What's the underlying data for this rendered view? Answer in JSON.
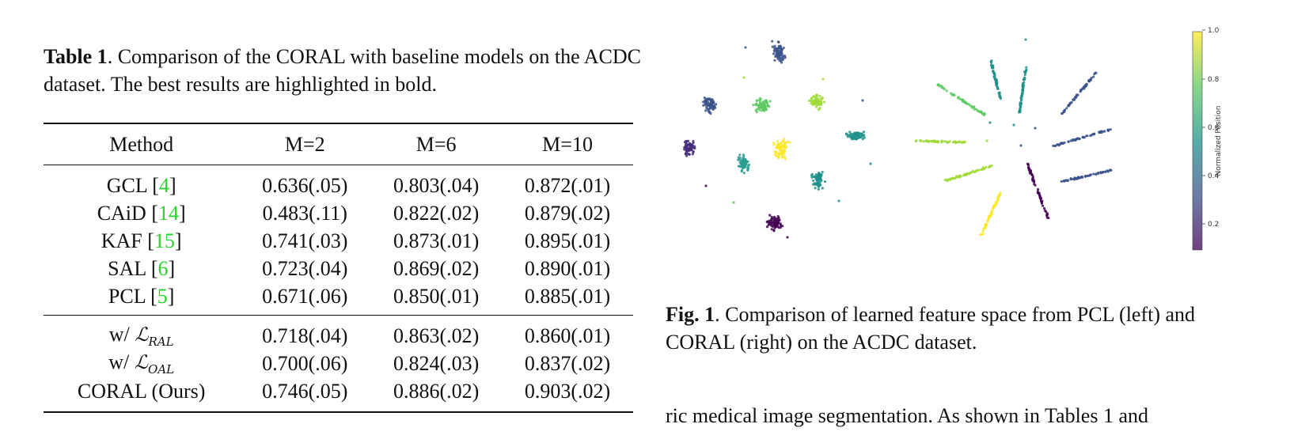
{
  "table": {
    "caption_label": "Table 1",
    "caption_text": ". Comparison of the CORAL with baseline models on the ACDC dataset. The best results are highlighted in bold.",
    "headers": [
      "Method",
      "M=2",
      "M=6",
      "M=10"
    ],
    "baselines": [
      {
        "method": "GCL",
        "ref": "4",
        "m2": "0.636(.05)",
        "m6": "0.803(.04)",
        "m10": "0.872(.01)"
      },
      {
        "method": "CAiD",
        "ref": "14",
        "m2": "0.483(.11)",
        "m6": "0.822(.02)",
        "m10": "0.879(.02)"
      },
      {
        "method": "KAF",
        "ref": "15",
        "m2": "0.741(.03)",
        "m6": "0.873(.01)",
        "m10": "0.895(.01)"
      },
      {
        "method": "SAL",
        "ref": "6",
        "m2": "0.723(.04)",
        "m6": "0.869(.02)",
        "m10": "0.890(.01)"
      },
      {
        "method": "PCL",
        "ref": "5",
        "m2": "0.671(.06)",
        "m6": "0.850(.01)",
        "m10": "0.885(.01)"
      }
    ],
    "ablations": [
      {
        "prefix": "w/ ",
        "math": "ℒ",
        "sub": "RAL",
        "m2": "0.718(.04)",
        "m6": "0.863(.02)",
        "m10": "0.860(.01)"
      },
      {
        "prefix": "w/ ",
        "math": "ℒ",
        "sub": "OAL",
        "m2": "0.700(.06)",
        "m6": "0.824(.03)",
        "m10": "0.837(.02)"
      }
    ],
    "ours": {
      "method": "CORAL (Ours)",
      "m2": "0.746(.05)",
      "m6": "0.886(.02)",
      "m10": "0.903(.02)"
    }
  },
  "figure": {
    "caption_label": "Fig. 1",
    "caption_text": ". Comparison of learned feature space from PCL (left) and CORAL (right) on the ACDC dataset.",
    "colorbar": {
      "label": "Normalized Position",
      "ticks": [
        "1.0",
        "0.8",
        "0.6",
        "0.4",
        "0.2"
      ]
    }
  },
  "body_text": "ric medical image segmentation. As shown in Tables 1 and"
}
